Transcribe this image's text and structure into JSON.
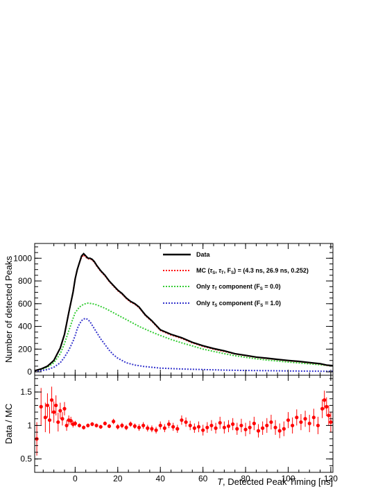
{
  "chart_data": [
    {
      "type": "line",
      "panel": "main",
      "xlabel": "T, Detected Peak Timing [ns]",
      "ylabel": "Number of detected Peaks",
      "xlim": [
        -19,
        121
      ],
      "ylim": [
        -30,
        1130
      ],
      "x_ticks": [
        0,
        20,
        40,
        60,
        80,
        100,
        120
      ],
      "y_ticks": [
        0,
        200,
        400,
        600,
        800,
        1000
      ],
      "x_tick_labels": [
        "0",
        "20",
        "40",
        "60",
        "80",
        "100",
        "120"
      ],
      "y_tick_labels": [
        "0",
        "200",
        "400",
        "600",
        "800",
        "1000"
      ],
      "legend_position": "top-right",
      "series": [
        {
          "name": "Data",
          "color": "#000000",
          "style": "solid",
          "x": [
            -19,
            -16,
            -13,
            -10,
            -7,
            -5,
            -3,
            -1,
            0,
            1,
            2,
            3,
            4,
            5,
            6,
            7,
            8,
            9,
            10,
            12,
            14,
            16,
            18,
            20,
            22,
            24,
            26,
            28,
            30,
            33,
            36,
            40,
            45,
            50,
            55,
            60,
            65,
            70,
            75,
            80,
            85,
            90,
            95,
            100,
            105,
            110,
            115,
            118,
            121
          ],
          "y": [
            10,
            25,
            50,
            100,
            210,
            330,
            520,
            700,
            820,
            900,
            960,
            1020,
            1040,
            1020,
            1000,
            1000,
            990,
            970,
            940,
            890,
            850,
            800,
            760,
            720,
            690,
            650,
            620,
            600,
            570,
            500,
            450,
            370,
            330,
            300,
            260,
            230,
            205,
            185,
            160,
            145,
            130,
            120,
            110,
            100,
            92,
            82,
            72,
            60,
            55
          ]
        },
        {
          "name": "MC (τS, τT, FS) = (4.3 ns, 26.9 ns, 0.252)",
          "color": "#ff0000",
          "style": "dashed",
          "x": [
            -19,
            -16,
            -13,
            -10,
            -7,
            -5,
            -3,
            -1,
            0,
            1,
            2,
            3,
            4,
            5,
            6,
            7,
            8,
            9,
            10,
            12,
            14,
            16,
            18,
            20,
            22,
            24,
            26,
            28,
            30,
            33,
            36,
            40,
            45,
            50,
            55,
            60,
            65,
            70,
            75,
            80,
            85,
            90,
            95,
            100,
            105,
            110,
            115,
            118,
            121
          ],
          "y": [
            10,
            25,
            50,
            100,
            210,
            330,
            520,
            700,
            820,
            900,
            960,
            1010,
            1030,
            1010,
            995,
            995,
            985,
            965,
            935,
            885,
            845,
            795,
            755,
            715,
            685,
            645,
            615,
            595,
            565,
            495,
            445,
            365,
            325,
            295,
            255,
            225,
            200,
            180,
            158,
            143,
            128,
            118,
            108,
            98,
            90,
            80,
            70,
            58,
            53
          ]
        },
        {
          "name": "Only τT component (FS = 0.0)",
          "color": "#33cc33",
          "style": "dashed",
          "x": [
            -19,
            -16,
            -13,
            -10,
            -7,
            -5,
            -3,
            -1,
            0,
            2,
            4,
            6,
            8,
            10,
            12,
            14,
            16,
            18,
            20,
            22,
            24,
            26,
            28,
            30,
            33,
            36,
            40,
            45,
            50,
            55,
            60,
            65,
            70,
            75,
            80,
            85,
            90,
            95,
            100,
            105,
            110,
            115,
            121
          ],
          "y": [
            10,
            20,
            40,
            80,
            160,
            250,
            360,
            470,
            520,
            570,
            595,
            605,
            600,
            590,
            575,
            560,
            540,
            520,
            500,
            480,
            460,
            440,
            420,
            400,
            375,
            350,
            320,
            285,
            255,
            228,
            200,
            180,
            160,
            142,
            128,
            115,
            104,
            95,
            86,
            78,
            70,
            62,
            52
          ]
        },
        {
          "name": "Only τS component (FS = 1.0)",
          "color": "#3333cc",
          "style": "dashed",
          "x": [
            -19,
            -16,
            -13,
            -10,
            -7,
            -5,
            -3,
            -1,
            0,
            1,
            2,
            3,
            4,
            5,
            6,
            7,
            8,
            9,
            10,
            12,
            14,
            16,
            18,
            20,
            24,
            28,
            32,
            36,
            40,
            50,
            60,
            70,
            80,
            90,
            100,
            110,
            121
          ],
          "y": [
            5,
            10,
            20,
            40,
            80,
            130,
            190,
            270,
            320,
            380,
            420,
            450,
            465,
            470,
            460,
            440,
            410,
            380,
            350,
            290,
            240,
            190,
            150,
            120,
            80,
            60,
            48,
            40,
            33,
            25,
            20,
            15,
            12,
            10,
            8,
            6,
            5
          ]
        }
      ]
    },
    {
      "type": "scatter",
      "panel": "ratio",
      "xlabel": "T, Detected Peak Timing [ns]",
      "ylabel": "Data / MC",
      "xlim": [
        -19,
        121
      ],
      "ylim": [
        0.3,
        1.75
      ],
      "x_ticks": [
        0,
        20,
        40,
        60,
        80,
        100,
        120
      ],
      "y_ticks": [
        0.5,
        1,
        1.5
      ],
      "x_tick_labels": [
        "0",
        "20",
        "40",
        "60",
        "80",
        "100",
        "120"
      ],
      "y_tick_labels": [
        "0.5",
        "1",
        "1.5"
      ],
      "series": [
        {
          "color": "#ff0000",
          "x": [
            -18,
            -16,
            -14,
            -13,
            -12,
            -11,
            -10,
            -9,
            -8,
            -7,
            -6,
            -5,
            -4,
            -3,
            -2,
            -1,
            0,
            2,
            4,
            6,
            8,
            10,
            12,
            14,
            16,
            18,
            20,
            22,
            24,
            26,
            28,
            30,
            32,
            34,
            36,
            38,
            40,
            42,
            44,
            46,
            48,
            50,
            52,
            54,
            56,
            58,
            60,
            62,
            64,
            66,
            68,
            70,
            72,
            74,
            76,
            78,
            80,
            82,
            84,
            86,
            88,
            90,
            92,
            94,
            96,
            98,
            100,
            102,
            104,
            106,
            108,
            110,
            112,
            114,
            116,
            117,
            118,
            119,
            120
          ],
          "y": [
            0.8,
            1.28,
            1.12,
            1.3,
            1.08,
            1.38,
            1.2,
            1.3,
            1.05,
            1.22,
            1.1,
            1.25,
            1.0,
            1.08,
            1.07,
            1.02,
            1.03,
            1.0,
            0.97,
            1.0,
            1.02,
            1.0,
            0.98,
            1.03,
            0.99,
            1.06,
            0.98,
            1.0,
            0.97,
            1.02,
            0.99,
            0.97,
            1.0,
            0.96,
            0.95,
            0.93,
            1.0,
            0.96,
            1.02,
            0.98,
            0.95,
            1.08,
            1.05,
            1.0,
            0.96,
            0.98,
            0.93,
            0.97,
            1.0,
            0.96,
            1.04,
            0.97,
            0.99,
            1.02,
            0.95,
            1.0,
            0.94,
            0.97,
            1.03,
            0.92,
            0.96,
            1.0,
            1.05,
            0.97,
            0.92,
            0.95,
            1.08,
            1.0,
            1.12,
            1.05,
            1.1,
            1.03,
            1.12,
            1.0,
            1.25,
            1.38,
            1.28,
            1.15,
            1.05
          ],
          "err": [
            0.25,
            0.28,
            0.22,
            0.18,
            0.2,
            0.2,
            0.16,
            0.15,
            0.14,
            0.12,
            0.1,
            0.1,
            0.08,
            0.07,
            0.06,
            0.05,
            0.04,
            0.03,
            0.03,
            0.03,
            0.03,
            0.03,
            0.03,
            0.03,
            0.03,
            0.04,
            0.04,
            0.04,
            0.04,
            0.04,
            0.04,
            0.05,
            0.05,
            0.05,
            0.05,
            0.05,
            0.06,
            0.06,
            0.06,
            0.06,
            0.06,
            0.07,
            0.07,
            0.07,
            0.07,
            0.08,
            0.08,
            0.08,
            0.08,
            0.08,
            0.09,
            0.09,
            0.09,
            0.09,
            0.09,
            0.1,
            0.1,
            0.1,
            0.1,
            0.1,
            0.1,
            0.11,
            0.11,
            0.11,
            0.11,
            0.11,
            0.12,
            0.12,
            0.12,
            0.12,
            0.12,
            0.13,
            0.13,
            0.13,
            0.14,
            0.14,
            0.14,
            0.15,
            0.15
          ]
        }
      ]
    }
  ],
  "legend": [
    {
      "key": "data",
      "color": "#000000",
      "text": "Data"
    },
    {
      "key": "mc",
      "color": "#ff0000",
      "text": "MC (τS, τT, FS) = (4.3 ns, 26.9 ns, 0.252)"
    },
    {
      "key": "triplet",
      "color": "#33cc33",
      "text": "Only τT component (FS = 0.0)"
    },
    {
      "key": "singlet",
      "color": "#3333cc",
      "text": "Only τS component (FS = 1.0)"
    }
  ]
}
